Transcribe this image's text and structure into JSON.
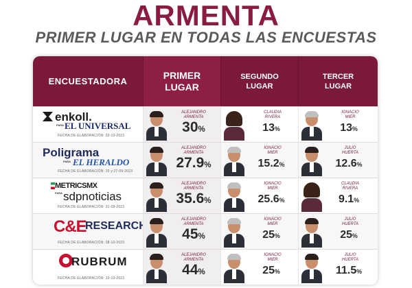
{
  "title": "ARMENTA",
  "subtitle": "PRIMER LUGAR EN TODAS LAS ENCUESTAS",
  "headers": {
    "encuestadora": "ENCUESTADORA",
    "primer": [
      "PRIMER",
      "LUGAR"
    ],
    "segundo": [
      "SEGUNDO",
      "LUGAR"
    ],
    "tercer": [
      "TERCER",
      "LUGAR"
    ]
  },
  "rows": [
    {
      "logo_main": "enkoll.",
      "logo_para": "PARA",
      "logo_sub": "EL UNIVERSAL",
      "date": "FECHA DE ELABORACIÓN: 03-10-2023",
      "first": {
        "name": [
          "ALEJANDRO",
          "ARMENTA"
        ],
        "value": "30"
      },
      "second": {
        "name": [
          "CLAUDIA",
          "RIVERA"
        ],
        "value": "13"
      },
      "third": {
        "name": [
          "IGNACIO",
          "MIER"
        ],
        "value": "13"
      }
    },
    {
      "logo_main": "Poligrama",
      "logo_para": "PARA",
      "logo_sub": "EL HERALDO",
      "date": "FECHA DE ELABORACIÓN: 20 y 27-09-2023",
      "first": {
        "name": [
          "ALEJANDRO",
          "ARMENTA"
        ],
        "value": "27.9"
      },
      "second": {
        "name": [
          "IGNACIO",
          "MIER"
        ],
        "value": "15.2"
      },
      "third": {
        "name": [
          "JULIO",
          "HUERTA"
        ],
        "value": "12.6"
      }
    },
    {
      "logo_main": "METRICSMX",
      "logo_para": "PARA",
      "logo_sub": "sdpnoticias",
      "date": "FECHA DE ELABORACIÓN: 31-08-2023",
      "first": {
        "name": [
          "ALEJANDRO",
          "ARMENTA"
        ],
        "value": "35.6"
      },
      "second": {
        "name": [
          "IGNACIO",
          "MIER"
        ],
        "value": "25.6"
      },
      "third": {
        "name": [
          "CLAUDIA",
          "RIVERA"
        ],
        "value": "9.1"
      }
    },
    {
      "logo_main": "C&E",
      "logo_para": "",
      "logo_sub": "RESEARCH",
      "date": "FECHA DE ELABORACIÓN: 08-10-2023",
      "first": {
        "name": [
          "ALEJANDRO",
          "ARMENTA"
        ],
        "value": "45"
      },
      "second": {
        "name": [
          "IGNACIO",
          "MIER"
        ],
        "value": "25"
      },
      "third": {
        "name": [
          "JULIO",
          "HUERTA"
        ],
        "value": "25"
      }
    },
    {
      "logo_main": "RUBRUM",
      "logo_para": "",
      "logo_sub": "",
      "date": "FECHA DE ELABORACIÓN: 10-10-2023",
      "first": {
        "name": [
          "ALEJANDRO",
          "ARMENTA"
        ],
        "value": "44"
      },
      "second": {
        "name": [
          "IGNACIO",
          "MIER"
        ],
        "value": "25"
      },
      "third": {
        "name": [
          "JULIO",
          "HUERTA"
        ],
        "value": "11.5"
      }
    }
  ],
  "percent_sign": "%",
  "colors": {
    "brand": "#7a1a38",
    "accent": "#8e1f44"
  }
}
